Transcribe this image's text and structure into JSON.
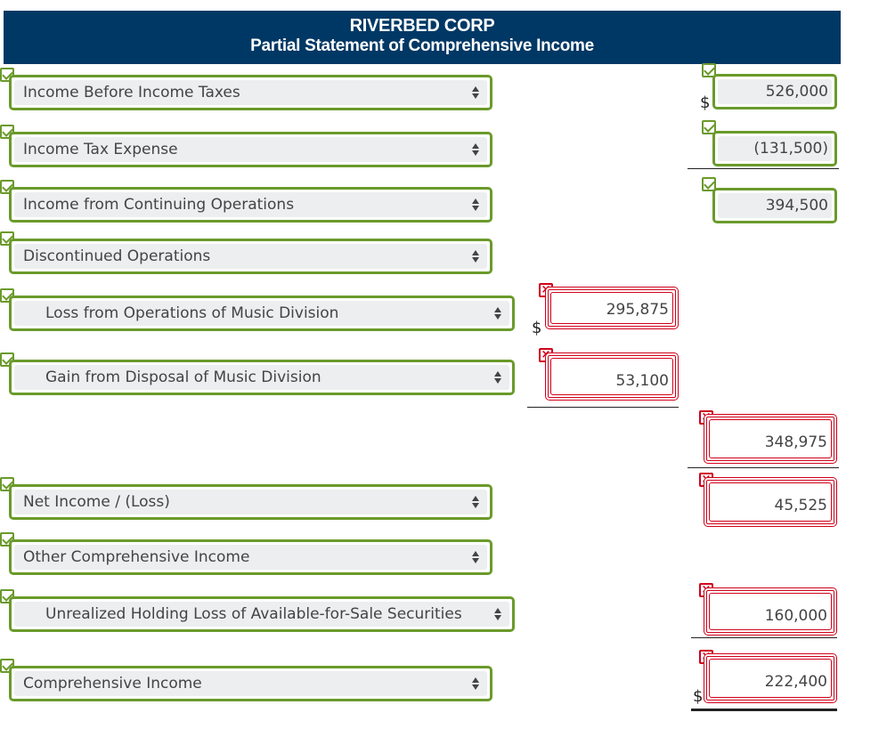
{
  "header": {
    "company": "RIVERBED CORP",
    "statement": "Partial Statement of Comprehensive Income"
  },
  "rows": [
    {
      "label": "Income Before Income Taxes",
      "amount": "526,000",
      "currency": "$",
      "label_status": "correct",
      "amount_status": "correct"
    },
    {
      "label": "Income Tax Expense",
      "amount": "(131,500)",
      "label_status": "correct",
      "amount_status": "correct"
    },
    {
      "label": "Income from Continuing Operations",
      "amount": "394,500",
      "label_status": "correct",
      "amount_status": "correct"
    },
    {
      "label": "Discontinued Operations",
      "label_status": "correct"
    },
    {
      "label": "Loss from Operations of Music Division",
      "amount": "295,875",
      "currency": "$",
      "label_status": "correct",
      "amount_status": "incorrect"
    },
    {
      "label": "Gain from Disposal of Music Division",
      "amount": "53,100",
      "label_status": "correct",
      "amount_status": "incorrect"
    },
    {
      "amount": "348,975",
      "amount_status": "incorrect"
    },
    {
      "label": "Net Income / (Loss)",
      "amount": "45,525",
      "label_status": "correct",
      "amount_status": "incorrect"
    },
    {
      "label": "Other Comprehensive Income",
      "label_status": "correct"
    },
    {
      "label": "Unrealized Holding Loss of Available-for-Sale Securities",
      "amount": "160,000",
      "label_status": "correct",
      "amount_status": "incorrect"
    },
    {
      "label": "Comprehensive Income",
      "amount": "222,400",
      "currency": "$",
      "label_status": "correct",
      "amount_status": "incorrect"
    }
  ],
  "icons": {
    "correct": "checkmark-icon",
    "incorrect": "x-mark-icon",
    "select": "up-down-arrows-icon",
    "x_glyph": "×"
  },
  "colors": {
    "header_bg": "#003865",
    "correct": "#6a9a2b",
    "incorrect": "#d0021b",
    "field_bg": "#eceeef"
  }
}
